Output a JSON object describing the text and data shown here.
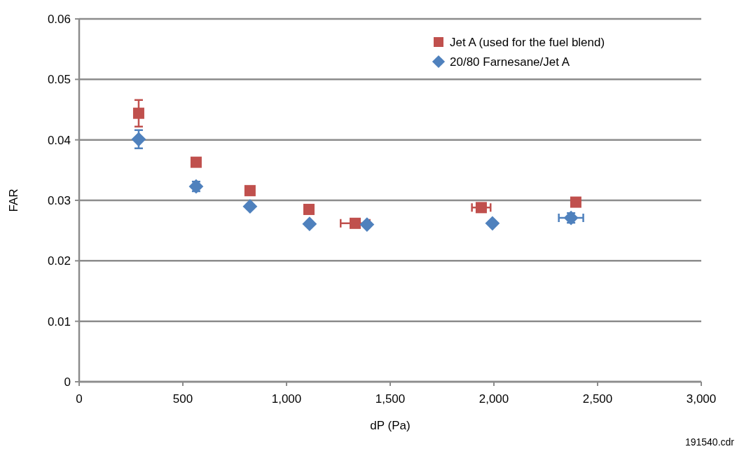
{
  "chart_data": {
    "type": "scatter",
    "xlabel": "dP (Pa)",
    "ylabel": "FAR",
    "xlim": [
      0,
      3000
    ],
    "xticks": [
      0,
      500,
      {
        "value": 1000,
        "label": "1,000"
      },
      {
        "value": 1500,
        "label": "1,500"
      },
      {
        "value": 2000,
        "label": "2,000"
      },
      {
        "value": 2500,
        "label": "2,500"
      },
      {
        "value": 3000,
        "label": "3,000"
      }
    ],
    "ylim": [
      0,
      0.06
    ],
    "yticks": [
      0,
      0.01,
      0.02,
      0.03,
      0.04,
      0.05,
      0.06
    ],
    "grid": "y",
    "legend": "top right",
    "annotations": [
      "191540.cdr"
    ],
    "series": [
      {
        "name": "Jet A (used for the fuel blend)",
        "color": "#c0504d",
        "marker": "square",
        "x": [
          287,
          564,
          824,
          1108,
          1331,
          1939,
          2395
        ],
        "values": [
          0.0444,
          0.0363,
          0.0316,
          0.0285,
          0.0262,
          0.0288,
          0.0297
        ],
        "errors": [
          0.0022,
          null,
          null,
          null,
          null,
          null,
          null
        ],
        "xerrors": [
          null,
          null,
          null,
          null,
          70,
          45,
          null
        ]
      },
      {
        "name": "20/80 Farnesane/Jet A",
        "color": "#4f81bd",
        "marker": "diamond",
        "x": [
          287,
          564,
          824,
          1111,
          1388,
          1993,
          2372
        ],
        "values": [
          0.0401,
          0.0323,
          0.029,
          0.0261,
          0.026,
          0.0262,
          0.0271
        ],
        "errors": [
          0.0015,
          0.0008,
          null,
          null,
          null,
          null,
          0.0008
        ],
        "xerrors": [
          null,
          null,
          null,
          null,
          null,
          null,
          59
        ]
      }
    ]
  }
}
